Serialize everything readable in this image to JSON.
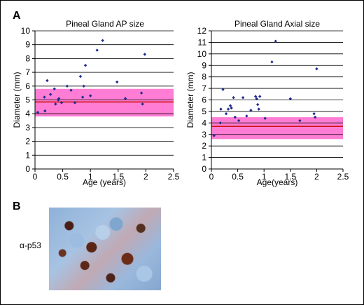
{
  "panels": {
    "a_letter": "A",
    "b_letter": "B"
  },
  "micro_label": "α-p53",
  "colors": {
    "points": "#1f2a8f",
    "band": "#ff66cc",
    "median": "#d01010"
  },
  "chart_data": [
    {
      "type": "scatter",
      "title": "Pineal Gland AP size",
      "xlabel": "Age (years)",
      "ylabel": "Diameter (mm)",
      "xlim": [
        0,
        2.5
      ],
      "ylim": [
        0,
        10
      ],
      "xticks": [
        "0",
        "0.5",
        "1",
        "1.5",
        "2",
        "2.5"
      ],
      "yticks": [
        "0",
        "1",
        "2",
        "3",
        "4",
        "5",
        "6",
        "7",
        "8",
        "9",
        "10"
      ],
      "grid": "horizontal",
      "band": [
        3.8,
        5.8
      ],
      "median": 4.85,
      "points": [
        [
          0.05,
          4.1
        ],
        [
          0.17,
          5.2
        ],
        [
          0.18,
          4.2
        ],
        [
          0.22,
          6.4
        ],
        [
          0.28,
          5.4
        ],
        [
          0.35,
          5.8
        ],
        [
          0.37,
          4.7
        ],
        [
          0.42,
          5.0
        ],
        [
          0.43,
          5.1
        ],
        [
          0.48,
          4.8
        ],
        [
          0.58,
          6.0
        ],
        [
          0.65,
          5.7
        ],
        [
          0.72,
          4.8
        ],
        [
          0.82,
          6.7
        ],
        [
          0.86,
          5.2
        ],
        [
          0.88,
          6.0
        ],
        [
          0.91,
          7.5
        ],
        [
          1.0,
          5.3
        ],
        [
          1.12,
          8.6
        ],
        [
          1.22,
          9.3
        ],
        [
          1.48,
          6.3
        ],
        [
          1.63,
          5.1
        ],
        [
          1.92,
          5.5
        ],
        [
          1.94,
          4.7
        ],
        [
          1.98,
          8.3
        ]
      ]
    },
    {
      "type": "scatter",
      "title": "Pineal Gland Axial size",
      "xlabel": "Age(years)",
      "ylabel": "Diameter (mm)",
      "xlim": [
        0,
        2.5
      ],
      "ylim": [
        0,
        12
      ],
      "xticks": [
        "0",
        "0.5",
        "1",
        "1.5",
        "2",
        "2.5"
      ],
      "yticks": [
        "0",
        "1",
        "2",
        "3",
        "4",
        "5",
        "6",
        "7",
        "8",
        "9",
        "10",
        "11",
        "12"
      ],
      "grid": "horizontal",
      "band": [
        2.6,
        4.5
      ],
      "median": 3.7,
      "points": [
        [
          0.05,
          2.9
        ],
        [
          0.17,
          4.0
        ],
        [
          0.18,
          5.2
        ],
        [
          0.22,
          6.9
        ],
        [
          0.28,
          4.8
        ],
        [
          0.32,
          5.2
        ],
        [
          0.36,
          5.5
        ],
        [
          0.38,
          5.3
        ],
        [
          0.42,
          6.2
        ],
        [
          0.45,
          4.5
        ],
        [
          0.52,
          4.2
        ],
        [
          0.6,
          6.2
        ],
        [
          0.67,
          4.6
        ],
        [
          0.75,
          5.1
        ],
        [
          0.84,
          6.3
        ],
        [
          0.86,
          6.1
        ],
        [
          0.88,
          5.6
        ],
        [
          0.9,
          5.2
        ],
        [
          0.92,
          6.3
        ],
        [
          1.02,
          4.4
        ],
        [
          1.15,
          9.3
        ],
        [
          1.22,
          11.1
        ],
        [
          1.5,
          6.1
        ],
        [
          1.68,
          4.2
        ],
        [
          1.95,
          4.8
        ],
        [
          1.97,
          4.5
        ],
        [
          2.0,
          8.7
        ]
      ]
    }
  ]
}
